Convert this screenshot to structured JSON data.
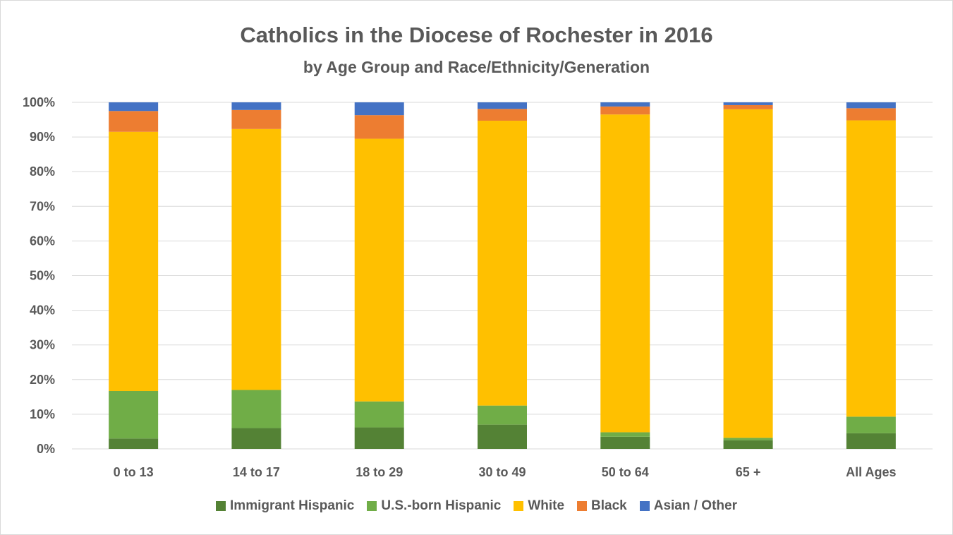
{
  "chart_data": {
    "type": "bar",
    "stacked": true,
    "title": "Catholics in the Diocese of Rochester in 2016",
    "subtitle": "by Age Group and Race/Ethnicity/Generation",
    "categories": [
      "0 to 13",
      "14 to 17",
      "18 to 29",
      "30 to 49",
      "50 to 64",
      "65 +",
      "All Ages"
    ],
    "y_ticks": [
      "0%",
      "10%",
      "20%",
      "30%",
      "40%",
      "50%",
      "60%",
      "70%",
      "80%",
      "90%",
      "100%"
    ],
    "ylim": [
      0,
      100
    ],
    "grid": true,
    "legend_position": "bottom",
    "series": [
      {
        "name": "Immigrant Hispanic",
        "color": "#548235",
        "values": [
          3,
          6,
          6.2,
          7,
          3.5,
          2.5,
          4.5
        ]
      },
      {
        "name": "U.S.-born Hispanic",
        "color": "#70ad47",
        "values": [
          13.7,
          11,
          7.5,
          5.5,
          1.3,
          0.7,
          4.8
        ]
      },
      {
        "name": "White",
        "color": "#ffc000",
        "values": [
          74.8,
          75.3,
          75.8,
          82.2,
          91.7,
          94.8,
          85.5
        ]
      },
      {
        "name": "Black",
        "color": "#ed7d31",
        "values": [
          6,
          5.5,
          6.8,
          3.4,
          2.3,
          1.2,
          3.5
        ]
      },
      {
        "name": "Asian / Other",
        "color": "#4472c4",
        "values": [
          2.5,
          2.2,
          3.7,
          1.9,
          1.2,
          0.8,
          1.7
        ]
      }
    ]
  }
}
